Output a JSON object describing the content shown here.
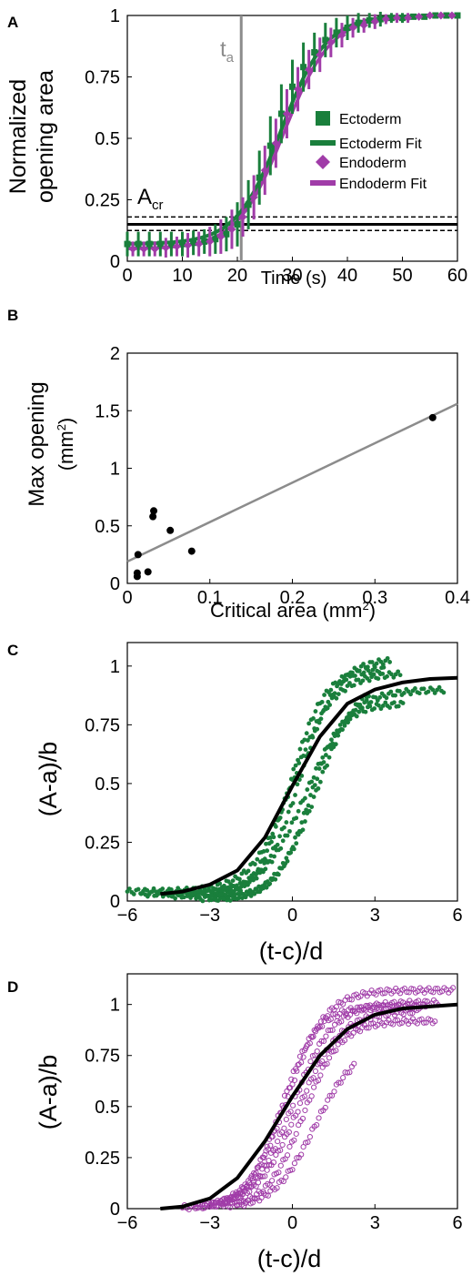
{
  "colors": {
    "ectoderm": "#1a7f3c",
    "endoderm": "#a03ca8",
    "fit_black": "#000000",
    "grid_gray": "#8c8c8c"
  },
  "panels": {
    "A": {
      "letter": "A",
      "ta_label": "t",
      "ta_sub": "a",
      "acr_label": "A",
      "acr_sub": "cr"
    },
    "B": {
      "letter": "B",
      "xlabel": "Critical area (mm",
      "xlabel_sup": "2",
      "xlabel_end": ")",
      "ylabel": "Max opening",
      "ylabel2": "(mm",
      "ylabel2_sup": "2",
      "ylabel2_end": ")"
    },
    "C": {
      "letter": "C"
    },
    "D": {
      "letter": "D"
    }
  },
  "chart_data": [
    {
      "panel": "A",
      "type": "line",
      "xlabel": "Time (s)",
      "ylabel": "Normalized opening area",
      "xlim": [
        0,
        60
      ],
      "ylim": [
        0,
        1
      ],
      "xticks": [
        "0",
        "10",
        "20",
        "30",
        "40",
        "50",
        "60"
      ],
      "yticks": [
        "0",
        "0.25",
        "0.5",
        "0.75",
        "1"
      ],
      "legend": {
        "placement": "right",
        "entries": [
          "Ectoderm",
          "Ectoderm Fit",
          "Endoderm",
          "Endoderm Fit"
        ]
      },
      "t_a": 20.7,
      "A_cr": {
        "value": 0.15,
        "lower": 0.125,
        "upper": 0.18
      },
      "series": [
        {
          "name": "Ectoderm",
          "x": [
            0,
            2,
            4,
            6,
            8,
            10,
            12,
            14,
            16,
            18,
            20,
            22,
            24,
            26,
            28,
            30,
            32,
            34,
            36,
            38,
            40,
            42,
            44,
            46,
            48,
            50,
            52,
            54,
            56,
            58,
            60
          ],
          "y": [
            0.07,
            0.07,
            0.07,
            0.07,
            0.07,
            0.07,
            0.075,
            0.08,
            0.09,
            0.11,
            0.15,
            0.23,
            0.34,
            0.47,
            0.6,
            0.71,
            0.79,
            0.85,
            0.9,
            0.93,
            0.95,
            0.97,
            0.98,
            0.985,
            0.99,
            0.99,
            0.995,
            0.995,
            1.0,
            1.0,
            1.0
          ],
          "err": [
            0.05,
            0.05,
            0.05,
            0.05,
            0.05,
            0.05,
            0.05,
            0.05,
            0.06,
            0.07,
            0.09,
            0.1,
            0.11,
            0.12,
            0.12,
            0.11,
            0.1,
            0.08,
            0.07,
            0.06,
            0.05,
            0.04,
            0.03,
            0.03,
            0.02,
            0.02,
            0.01,
            0.01,
            0.01,
            0.01,
            0.01
          ]
        },
        {
          "name": "Endoderm",
          "x": [
            1,
            3,
            5,
            7,
            9,
            11,
            13,
            15,
            17,
            19,
            21,
            23,
            25,
            27,
            29,
            31,
            33,
            35,
            37,
            39,
            41,
            43,
            45,
            47,
            49,
            51,
            53,
            55,
            57,
            59
          ],
          "y": [
            0.05,
            0.05,
            0.05,
            0.055,
            0.06,
            0.065,
            0.07,
            0.08,
            0.1,
            0.13,
            0.18,
            0.26,
            0.37,
            0.48,
            0.6,
            0.7,
            0.78,
            0.84,
            0.89,
            0.92,
            0.95,
            0.96,
            0.975,
            0.985,
            0.99,
            0.99,
            0.995,
            1.0,
            1.0,
            1.0
          ],
          "err": [
            0.03,
            0.03,
            0.03,
            0.04,
            0.04,
            0.05,
            0.05,
            0.06,
            0.07,
            0.08,
            0.08,
            0.09,
            0.1,
            0.1,
            0.1,
            0.09,
            0.08,
            0.07,
            0.06,
            0.05,
            0.04,
            0.03,
            0.03,
            0.02,
            0.02,
            0.02,
            0.01,
            0.01,
            0.01,
            0.01
          ]
        }
      ],
      "fits": [
        {
          "name": "Ectoderm Fit",
          "a": 0.07,
          "b": 0.93,
          "c": 28,
          "d": 4.1
        },
        {
          "name": "Endoderm Fit",
          "a": 0.05,
          "b": 0.95,
          "c": 28.5,
          "d": 4.3
        }
      ]
    },
    {
      "panel": "B",
      "type": "scatter",
      "xlim": [
        0,
        0.4
      ],
      "ylim": [
        0,
        2
      ],
      "xticks": [
        "0",
        "0.1",
        "0.2",
        "0.3",
        "0.4"
      ],
      "yticks": [
        "0",
        "0.5",
        "1",
        "1.5",
        "2"
      ],
      "points": [
        [
          0.012,
          0.06
        ],
        [
          0.012,
          0.09
        ],
        [
          0.013,
          0.25
        ],
        [
          0.025,
          0.1
        ],
        [
          0.031,
          0.58
        ],
        [
          0.032,
          0.63
        ],
        [
          0.052,
          0.46
        ],
        [
          0.078,
          0.28
        ],
        [
          0.37,
          1.44
        ]
      ],
      "fit_line": {
        "x": [
          0,
          0.4
        ],
        "y": [
          0.19,
          1.56
        ]
      }
    },
    {
      "panel": "C",
      "type": "scatter",
      "xlabel": "(t-c)/d",
      "ylabel": "(A-a)/b",
      "xlim": [
        -6,
        6
      ],
      "ylim": [
        0,
        1.1
      ],
      "xticks": [
        "−6",
        "−3",
        "0",
        "3",
        "6"
      ],
      "yticks": [
        "0",
        "0.25",
        "0.5",
        "0.75",
        "1"
      ],
      "marker": "filled-dot",
      "color_key": "ectoderm",
      "traces": [
        {
          "x0": -6.0,
          "x1": 3.9,
          "c": 0.0,
          "s": 1.0,
          "top": 0.97,
          "base": 0.04
        },
        {
          "x0": -5.5,
          "x1": 3.5,
          "c": 0.3,
          "s": 0.9,
          "top": 1.03,
          "base": 0.03
        },
        {
          "x0": -4.5,
          "x1": 5.5,
          "c": 0.5,
          "s": 1.1,
          "top": 0.9,
          "base": 0.02
        },
        {
          "x0": -3.5,
          "x1": 4.0,
          "c": 0.6,
          "s": 0.8,
          "top": 0.84,
          "base": 0.01
        },
        {
          "x0": -3.0,
          "x1": 3.3,
          "c": -0.1,
          "s": 0.85,
          "top": 0.99,
          "base": 0.0
        },
        {
          "x0": -2.5,
          "x1": 2.8,
          "c": 0.9,
          "s": 1.0,
          "top": 0.95,
          "base": 0.0
        }
      ],
      "master_fit": {
        "x": [
          -4.8,
          -4,
          -3,
          -2,
          -1,
          0,
          1,
          2,
          3,
          4,
          5,
          6
        ],
        "y": [
          0.03,
          0.04,
          0.07,
          0.13,
          0.27,
          0.49,
          0.7,
          0.84,
          0.9,
          0.93,
          0.945,
          0.95
        ]
      }
    },
    {
      "panel": "D",
      "type": "scatter",
      "xlabel": "(t-c)/d",
      "ylabel": "(A-a)/b",
      "xlim": [
        -6,
        6
      ],
      "ylim": [
        0,
        1.15
      ],
      "xticks": [
        "−6",
        "−3",
        "0",
        "3",
        "6"
      ],
      "yticks": [
        "0",
        "0.25",
        "0.5",
        "0.75",
        "1"
      ],
      "marker": "open-circle",
      "color_key": "endoderm",
      "traces": [
        {
          "x0": -4.0,
          "x1": 5.8,
          "c": -0.2,
          "s": 0.95,
          "top": 1.07,
          "base": 0.0
        },
        {
          "x0": -3.5,
          "x1": 5.3,
          "c": 0.0,
          "s": 1.0,
          "top": 1.01,
          "base": 0.0
        },
        {
          "x0": -3.0,
          "x1": 4.5,
          "c": 0.2,
          "s": 1.05,
          "top": 0.97,
          "base": 0.0
        },
        {
          "x0": -2.5,
          "x1": 5.2,
          "c": 0.4,
          "s": 0.9,
          "top": 0.92,
          "base": 0.0
        },
        {
          "x0": -2.0,
          "x1": 2.2,
          "c": 0.8,
          "s": 1.0,
          "top": 0.8,
          "base": 0.0
        },
        {
          "x0": -3.0,
          "x1": 4.8,
          "c": -0.4,
          "s": 0.85,
          "top": 0.99,
          "base": 0.0
        }
      ],
      "master_fit": {
        "x": [
          -4.8,
          -4,
          -3,
          -2,
          -1,
          0,
          1,
          2,
          3,
          4,
          5,
          6
        ],
        "y": [
          0.0,
          0.01,
          0.05,
          0.15,
          0.33,
          0.55,
          0.75,
          0.88,
          0.95,
          0.98,
          0.99,
          1.0
        ]
      }
    }
  ]
}
